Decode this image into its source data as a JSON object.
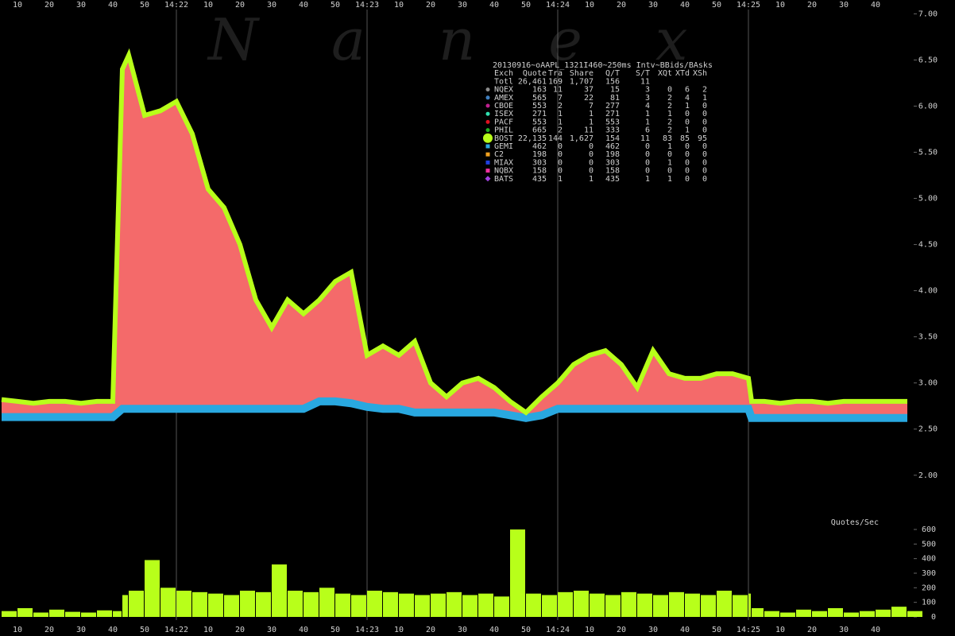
{
  "chart_data": [
    {
      "type": "band",
      "watermark": "Nanex",
      "x": [
        5,
        10,
        15,
        20,
        25,
        30,
        35,
        40,
        43,
        45,
        50,
        55,
        60,
        65,
        70,
        75,
        80,
        85,
        90,
        95,
        100,
        105,
        110,
        115,
        120,
        125,
        130,
        135,
        140,
        145,
        150,
        155,
        160,
        165,
        170,
        175,
        180,
        185,
        190,
        195,
        200,
        205,
        210,
        215,
        220,
        225,
        230,
        235,
        240,
        241,
        245,
        250,
        255,
        260,
        265,
        270,
        275,
        280,
        285,
        290
      ],
      "series": [
        {
          "color": "#b8ff1a",
          "values": [
            2.82,
            2.8,
            2.78,
            2.8,
            2.8,
            2.78,
            2.8,
            2.8,
            6.4,
            6.55,
            5.9,
            5.95,
            6.05,
            5.7,
            5.1,
            4.9,
            4.5,
            3.9,
            3.6,
            3.9,
            3.75,
            3.9,
            4.1,
            4.2,
            3.3,
            3.4,
            3.3,
            3.45,
            3.0,
            2.85,
            3.0,
            3.05,
            2.95,
            2.8,
            2.68,
            2.85,
            3.0,
            3.2,
            3.3,
            3.35,
            3.2,
            2.95,
            3.35,
            3.1,
            3.05,
            3.05,
            3.1,
            3.1,
            3.05,
            2.8,
            2.8,
            2.78,
            2.8,
            2.8,
            2.78,
            2.8,
            2.8,
            2.8,
            2.8,
            2.8
          ]
        },
        {
          "color": "#29a8e0",
          "values": [
            2.63,
            2.63,
            2.63,
            2.63,
            2.63,
            2.63,
            2.63,
            2.63,
            2.72,
            2.72,
            2.72,
            2.72,
            2.72,
            2.72,
            2.72,
            2.72,
            2.72,
            2.72,
            2.72,
            2.72,
            2.72,
            2.8,
            2.8,
            2.78,
            2.74,
            2.72,
            2.72,
            2.68,
            2.68,
            2.68,
            2.68,
            2.68,
            2.68,
            2.65,
            2.62,
            2.65,
            2.72,
            2.72,
            2.72,
            2.72,
            2.72,
            2.72,
            2.72,
            2.72,
            2.72,
            2.72,
            2.72,
            2.72,
            2.72,
            2.62,
            2.62,
            2.62,
            2.62,
            2.62,
            2.62,
            2.62,
            2.62,
            2.62,
            2.62,
            2.62
          ]
        }
      ],
      "fill_color": "#f46a6a",
      "xlim": [
        4.5,
        292
      ],
      "xticks": [
        10,
        20,
        30,
        40,
        50,
        {
          "value": 60,
          "label": "14:22"
        },
        {
          "value": 70,
          "label": "10"
        },
        {
          "value": 80,
          "label": "20"
        },
        {
          "value": 90,
          "label": "30"
        },
        {
          "value": 100,
          "label": "40"
        },
        {
          "value": 110,
          "label": "50"
        },
        {
          "value": 120,
          "label": "14:23"
        },
        {
          "value": 130,
          "label": "10"
        },
        {
          "value": 140,
          "label": "20"
        },
        {
          "value": 150,
          "label": "30"
        },
        {
          "value": 160,
          "label": "40"
        },
        {
          "value": 170,
          "label": "50"
        },
        {
          "value": 180,
          "label": "14:24"
        },
        {
          "value": 190,
          "label": "10"
        },
        {
          "value": 200,
          "label": "20"
        },
        {
          "value": 210,
          "label": "30"
        },
        {
          "value": 220,
          "label": "40"
        },
        {
          "value": 230,
          "label": "50"
        },
        {
          "value": 240,
          "label": "14:25"
        },
        {
          "value": 250,
          "label": "10"
        },
        {
          "value": 260,
          "label": "20"
        },
        {
          "value": 270,
          "label": "30"
        },
        {
          "value": 280,
          "label": "40"
        }
      ],
      "ylim": [
        1.55,
        7.15
      ],
      "yticks": [
        {
          "value": 2,
          "label": "2.00"
        },
        {
          "value": 2.5,
          "label": "2.50"
        },
        {
          "value": 3,
          "label": "3.00"
        },
        {
          "value": 3.5,
          "label": "3.50"
        },
        {
          "value": 4,
          "label": "4.00"
        },
        {
          "value": 4.5,
          "label": "4.50"
        },
        {
          "value": 5,
          "label": "5.00"
        },
        {
          "value": 5.5,
          "label": "5.50"
        },
        {
          "value": 6,
          "label": "6.00"
        },
        {
          "value": 6.5,
          "label": "6.50"
        },
        {
          "value": 7,
          "label": "7.00"
        }
      ]
    },
    {
      "type": "bar",
      "title": "Quotes/Sec",
      "color": "#b8ff1a",
      "x": [
        5,
        10,
        15,
        20,
        25,
        30,
        35,
        40,
        43,
        45,
        50,
        55,
        60,
        65,
        70,
        75,
        80,
        85,
        90,
        95,
        100,
        105,
        110,
        115,
        120,
        125,
        130,
        135,
        140,
        145,
        150,
        155,
        160,
        165,
        170,
        175,
        180,
        185,
        190,
        195,
        200,
        205,
        210,
        215,
        220,
        225,
        230,
        235,
        240,
        241,
        245,
        250,
        255,
        260,
        265,
        270,
        275,
        280,
        285,
        290
      ],
      "values": [
        40,
        60,
        30,
        50,
        35,
        30,
        45,
        40,
        150,
        180,
        390,
        200,
        180,
        170,
        160,
        150,
        180,
        170,
        360,
        180,
        170,
        200,
        160,
        150,
        180,
        170,
        160,
        150,
        160,
        170,
        150,
        160,
        140,
        600,
        160,
        150,
        170,
        180,
        160,
        150,
        170,
        160,
        150,
        170,
        160,
        150,
        180,
        150,
        160,
        60,
        40,
        30,
        50,
        40,
        60,
        30,
        40,
        50,
        70,
        40
      ],
      "ylim": [
        0,
        600
      ],
      "yticks": [
        0,
        100,
        200,
        300,
        400,
        500,
        600
      ]
    }
  ],
  "legend_table": {
    "title": "20130916~oAAPL_1321I460~250ms Intv~BBids/BAsks",
    "columns": [
      "Exch",
      "Quote",
      "Tra",
      "Share",
      "Q/T",
      "S/T",
      "XQt",
      "XTd",
      "XSh"
    ],
    "rows": [
      {
        "cells": [
          "Totl",
          "26,461",
          "169",
          "1,707",
          "156",
          "11"
        ]
      },
      {
        "cells": [
          "NQEX",
          "163",
          "11",
          "37",
          "15",
          "3",
          "0",
          "6",
          "2"
        ],
        "color": "#8c8c8c",
        "marker": "circle"
      },
      {
        "cells": [
          "AMEX",
          "565",
          "7",
          "22",
          "81",
          "3",
          "2",
          "4",
          "1"
        ],
        "color": "#3f7fbf",
        "marker": "circle"
      },
      {
        "cells": [
          "CBOE",
          "553",
          "2",
          "7",
          "277",
          "4",
          "2",
          "1",
          "0"
        ],
        "color": "#c0208f",
        "marker": "circle"
      },
      {
        "cells": [
          "ISEX",
          "271",
          "1",
          "1",
          "271",
          "1",
          "1",
          "0",
          "0"
        ],
        "color": "#30e0b0",
        "marker": "circle"
      },
      {
        "cells": [
          "PACF",
          "553",
          "1",
          "1",
          "553",
          "1",
          "2",
          "0",
          "0"
        ],
        "color": "#e01020",
        "marker": "circle"
      },
      {
        "cells": [
          "PHIL",
          "665",
          "2",
          "11",
          "333",
          "6",
          "2",
          "1",
          "0"
        ],
        "color": "#20b020",
        "marker": "circle"
      },
      {
        "cells": [
          "BOST",
          "22,135",
          "144",
          "1,627",
          "154",
          "11",
          "83",
          "85",
          "95"
        ],
        "color": "#b8ff1a",
        "marker": "big-circle"
      },
      {
        "cells": [
          "GEMI",
          "462",
          "0",
          "0",
          "462",
          "0",
          "1",
          "0",
          "0"
        ],
        "color": "#29a8e0",
        "marker": "square"
      },
      {
        "cells": [
          "C2",
          "198",
          "0",
          "0",
          "198",
          "0",
          "0",
          "0",
          "0"
        ],
        "color": "#f0a020",
        "marker": "square"
      },
      {
        "cells": [
          "MIAX",
          "303",
          "0",
          "0",
          "303",
          "0",
          "1",
          "0",
          "0"
        ],
        "color": "#2040e0",
        "marker": "square"
      },
      {
        "cells": [
          "NQBX",
          "158",
          "0",
          "0",
          "158",
          "0",
          "0",
          "0",
          "0"
        ],
        "color": "#f030a0",
        "marker": "square"
      },
      {
        "cells": [
          "BATS",
          "435",
          "1",
          "1",
          "435",
          "1",
          "1",
          "0",
          "0"
        ],
        "color": "#a040e0",
        "marker": "diamond"
      }
    ]
  }
}
